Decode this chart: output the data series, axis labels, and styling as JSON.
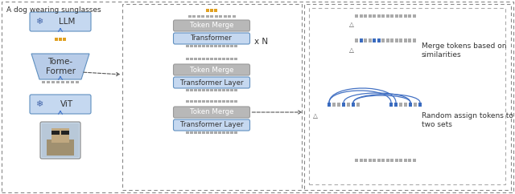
{
  "bg_color": "#ffffff",
  "light_blue": "#c5d8f0",
  "gray_box": "#b8b8b8",
  "trap_blue": "#b8cce8",
  "token_blue": "#3a6bbf",
  "token_gray": "#aaaaaa",
  "gold_color": "#e0a020",
  "arrow_blue": "#4a7acc",
  "text_dark": "#333333",
  "text_white": "#ffffff",
  "dash_ec": "#888888",
  "label_caption": "A dog wearing sunglasses",
  "label_LLM": "LLM",
  "label_TomeFormer": "Tome-\nFormer",
  "label_ViT": "ViT",
  "label_token_merge": "Token Merge",
  "label_transformer": "Transformer",
  "label_transformer_layer": "Transformer Layer",
  "label_xN": "x N",
  "label_merge_text": "Merge tokens based on\nsimilarities",
  "label_random_text": "Random assign tokens to\ntwo sets"
}
